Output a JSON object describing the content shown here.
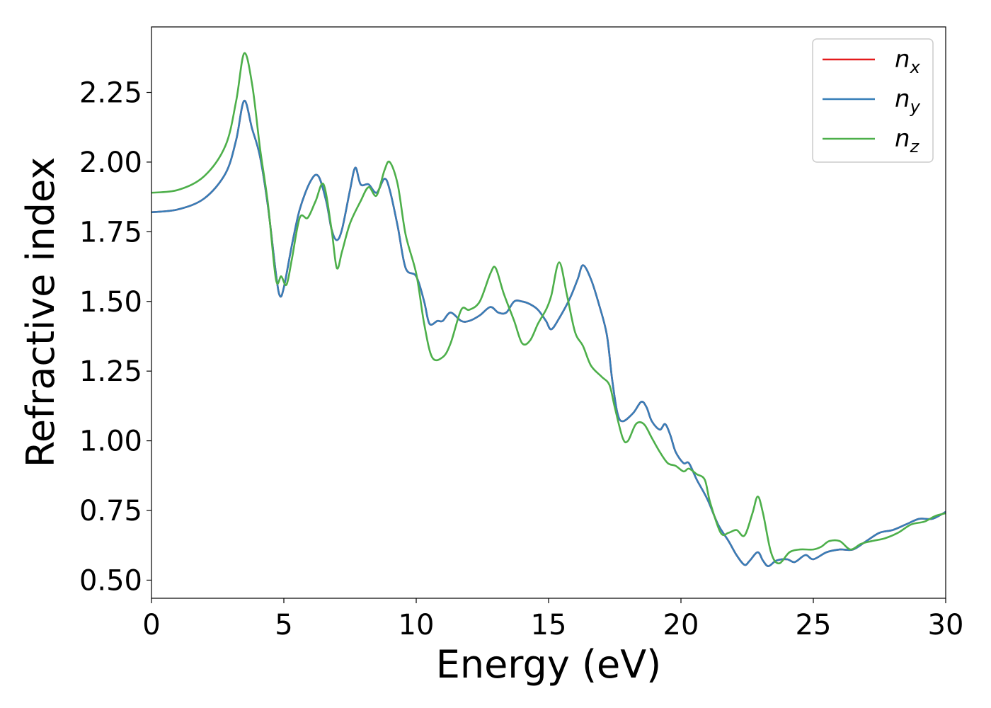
{
  "chart_data": {
    "type": "line",
    "title": "",
    "xlabel": "Energy (eV)",
    "ylabel": "Refractive index",
    "xlim": [
      0,
      30
    ],
    "ylim": [
      0.435,
      2.485
    ],
    "xticks": [
      0,
      5,
      10,
      15,
      20,
      25,
      30
    ],
    "xtick_labels": [
      "0",
      "5",
      "10",
      "15",
      "20",
      "25",
      "30"
    ],
    "yticks": [
      0.5,
      0.75,
      1.0,
      1.25,
      1.5,
      1.75,
      2.0,
      2.25
    ],
    "ytick_labels": [
      "0.50",
      "0.75",
      "1.00",
      "1.25",
      "1.50",
      "1.75",
      "2.00",
      "2.25"
    ],
    "grid": false,
    "legend_position": "top-right",
    "series": [
      {
        "name": "n_x",
        "label_base": "n",
        "label_sub": "x",
        "color": "#e41a1c",
        "points": [
          [
            0,
            1.82
          ],
          [
            1,
            1.83
          ],
          [
            2,
            1.87
          ],
          [
            2.8,
            1.96
          ],
          [
            3.2,
            2.08
          ],
          [
            3.5,
            2.22
          ],
          [
            3.8,
            2.12
          ],
          [
            4.1,
            2.02
          ],
          [
            4.4,
            1.84
          ],
          [
            4.7,
            1.6
          ],
          [
            4.85,
            1.52
          ],
          [
            5.0,
            1.55
          ],
          [
            5.3,
            1.7
          ],
          [
            5.6,
            1.83
          ],
          [
            6.0,
            1.93
          ],
          [
            6.3,
            1.95
          ],
          [
            6.6,
            1.86
          ],
          [
            6.8,
            1.76
          ],
          [
            7.0,
            1.72
          ],
          [
            7.2,
            1.76
          ],
          [
            7.5,
            1.9
          ],
          [
            7.7,
            1.98
          ],
          [
            7.9,
            1.92
          ],
          [
            8.2,
            1.92
          ],
          [
            8.5,
            1.89
          ],
          [
            8.8,
            1.94
          ],
          [
            9.0,
            1.9
          ],
          [
            9.3,
            1.77
          ],
          [
            9.6,
            1.62
          ],
          [
            10.0,
            1.59
          ],
          [
            10.3,
            1.5
          ],
          [
            10.5,
            1.42
          ],
          [
            10.8,
            1.43
          ],
          [
            11.0,
            1.43
          ],
          [
            11.3,
            1.46
          ],
          [
            11.7,
            1.43
          ],
          [
            12.0,
            1.43
          ],
          [
            12.4,
            1.45
          ],
          [
            12.8,
            1.48
          ],
          [
            13.1,
            1.46
          ],
          [
            13.4,
            1.46
          ],
          [
            13.7,
            1.5
          ],
          [
            14.0,
            1.5
          ],
          [
            14.3,
            1.49
          ],
          [
            14.6,
            1.47
          ],
          [
            14.9,
            1.43
          ],
          [
            15.1,
            1.4
          ],
          [
            15.4,
            1.44
          ],
          [
            15.8,
            1.51
          ],
          [
            16.1,
            1.58
          ],
          [
            16.3,
            1.63
          ],
          [
            16.6,
            1.58
          ],
          [
            16.9,
            1.49
          ],
          [
            17.2,
            1.38
          ],
          [
            17.4,
            1.22
          ],
          [
            17.6,
            1.1
          ],
          [
            17.8,
            1.07
          ],
          [
            18.2,
            1.1
          ],
          [
            18.5,
            1.14
          ],
          [
            18.7,
            1.12
          ],
          [
            18.9,
            1.07
          ],
          [
            19.2,
            1.04
          ],
          [
            19.4,
            1.06
          ],
          [
            19.6,
            1.02
          ],
          [
            19.8,
            0.96
          ],
          [
            20.1,
            0.92
          ],
          [
            20.3,
            0.92
          ],
          [
            20.6,
            0.86
          ],
          [
            21.0,
            0.79
          ],
          [
            21.4,
            0.7
          ],
          [
            21.8,
            0.64
          ],
          [
            22.1,
            0.59
          ],
          [
            22.4,
            0.555
          ],
          [
            22.6,
            0.57
          ],
          [
            22.9,
            0.6
          ],
          [
            23.1,
            0.57
          ],
          [
            23.3,
            0.55
          ],
          [
            23.6,
            0.57
          ],
          [
            24.0,
            0.575
          ],
          [
            24.3,
            0.565
          ],
          [
            24.7,
            0.59
          ],
          [
            25.0,
            0.575
          ],
          [
            25.5,
            0.6
          ],
          [
            26.0,
            0.61
          ],
          [
            26.5,
            0.61
          ],
          [
            27.0,
            0.64
          ],
          [
            27.5,
            0.67
          ],
          [
            28.0,
            0.68
          ],
          [
            28.5,
            0.7
          ],
          [
            29.0,
            0.72
          ],
          [
            29.5,
            0.72
          ],
          [
            30.0,
            0.745
          ]
        ]
      },
      {
        "name": "n_y",
        "label_base": "n",
        "label_sub": "y",
        "color": "#377eb8",
        "points": [
          [
            0,
            1.82
          ],
          [
            1,
            1.83
          ],
          [
            2,
            1.87
          ],
          [
            2.8,
            1.96
          ],
          [
            3.2,
            2.08
          ],
          [
            3.5,
            2.22
          ],
          [
            3.8,
            2.12
          ],
          [
            4.1,
            2.02
          ],
          [
            4.4,
            1.84
          ],
          [
            4.7,
            1.6
          ],
          [
            4.85,
            1.52
          ],
          [
            5.0,
            1.55
          ],
          [
            5.3,
            1.7
          ],
          [
            5.6,
            1.83
          ],
          [
            6.0,
            1.93
          ],
          [
            6.3,
            1.95
          ],
          [
            6.6,
            1.86
          ],
          [
            6.8,
            1.76
          ],
          [
            7.0,
            1.72
          ],
          [
            7.2,
            1.76
          ],
          [
            7.5,
            1.9
          ],
          [
            7.7,
            1.98
          ],
          [
            7.9,
            1.92
          ],
          [
            8.2,
            1.92
          ],
          [
            8.5,
            1.89
          ],
          [
            8.8,
            1.94
          ],
          [
            9.0,
            1.9
          ],
          [
            9.3,
            1.77
          ],
          [
            9.6,
            1.62
          ],
          [
            10.0,
            1.59
          ],
          [
            10.3,
            1.5
          ],
          [
            10.5,
            1.42
          ],
          [
            10.8,
            1.43
          ],
          [
            11.0,
            1.43
          ],
          [
            11.3,
            1.46
          ],
          [
            11.7,
            1.43
          ],
          [
            12.0,
            1.43
          ],
          [
            12.4,
            1.45
          ],
          [
            12.8,
            1.48
          ],
          [
            13.1,
            1.46
          ],
          [
            13.4,
            1.46
          ],
          [
            13.7,
            1.5
          ],
          [
            14.0,
            1.5
          ],
          [
            14.3,
            1.49
          ],
          [
            14.6,
            1.47
          ],
          [
            14.9,
            1.43
          ],
          [
            15.1,
            1.4
          ],
          [
            15.4,
            1.44
          ],
          [
            15.8,
            1.51
          ],
          [
            16.1,
            1.58
          ],
          [
            16.3,
            1.63
          ],
          [
            16.6,
            1.58
          ],
          [
            16.9,
            1.49
          ],
          [
            17.2,
            1.38
          ],
          [
            17.4,
            1.22
          ],
          [
            17.6,
            1.1
          ],
          [
            17.8,
            1.07
          ],
          [
            18.2,
            1.1
          ],
          [
            18.5,
            1.14
          ],
          [
            18.7,
            1.12
          ],
          [
            18.9,
            1.07
          ],
          [
            19.2,
            1.04
          ],
          [
            19.4,
            1.06
          ],
          [
            19.6,
            1.02
          ],
          [
            19.8,
            0.96
          ],
          [
            20.1,
            0.92
          ],
          [
            20.3,
            0.92
          ],
          [
            20.6,
            0.86
          ],
          [
            21.0,
            0.79
          ],
          [
            21.4,
            0.7
          ],
          [
            21.8,
            0.64
          ],
          [
            22.1,
            0.59
          ],
          [
            22.4,
            0.555
          ],
          [
            22.6,
            0.57
          ],
          [
            22.9,
            0.6
          ],
          [
            23.1,
            0.57
          ],
          [
            23.3,
            0.55
          ],
          [
            23.6,
            0.57
          ],
          [
            24.0,
            0.575
          ],
          [
            24.3,
            0.565
          ],
          [
            24.7,
            0.59
          ],
          [
            25.0,
            0.575
          ],
          [
            25.5,
            0.6
          ],
          [
            26.0,
            0.61
          ],
          [
            26.5,
            0.61
          ],
          [
            27.0,
            0.64
          ],
          [
            27.5,
            0.67
          ],
          [
            28.0,
            0.68
          ],
          [
            28.5,
            0.7
          ],
          [
            29.0,
            0.72
          ],
          [
            29.5,
            0.72
          ],
          [
            30.0,
            0.745
          ]
        ]
      },
      {
        "name": "n_z",
        "label_base": "n",
        "label_sub": "z",
        "color": "#4daf4a",
        "points": [
          [
            0,
            1.89
          ],
          [
            1,
            1.9
          ],
          [
            2,
            1.95
          ],
          [
            2.8,
            2.06
          ],
          [
            3.2,
            2.22
          ],
          [
            3.5,
            2.39
          ],
          [
            3.8,
            2.28
          ],
          [
            4.1,
            2.05
          ],
          [
            4.4,
            1.85
          ],
          [
            4.7,
            1.58
          ],
          [
            4.9,
            1.59
          ],
          [
            5.1,
            1.56
          ],
          [
            5.3,
            1.65
          ],
          [
            5.6,
            1.8
          ],
          [
            5.9,
            1.8
          ],
          [
            6.2,
            1.86
          ],
          [
            6.5,
            1.92
          ],
          [
            6.8,
            1.76
          ],
          [
            7.0,
            1.62
          ],
          [
            7.2,
            1.68
          ],
          [
            7.5,
            1.78
          ],
          [
            7.9,
            1.86
          ],
          [
            8.2,
            1.91
          ],
          [
            8.5,
            1.88
          ],
          [
            8.8,
            1.97
          ],
          [
            9.0,
            2.0
          ],
          [
            9.3,
            1.92
          ],
          [
            9.6,
            1.74
          ],
          [
            10.0,
            1.6
          ],
          [
            10.3,
            1.42
          ],
          [
            10.6,
            1.3
          ],
          [
            11.0,
            1.3
          ],
          [
            11.3,
            1.35
          ],
          [
            11.7,
            1.47
          ],
          [
            12.0,
            1.47
          ],
          [
            12.4,
            1.5
          ],
          [
            12.8,
            1.6
          ],
          [
            13.0,
            1.62
          ],
          [
            13.3,
            1.53
          ],
          [
            13.7,
            1.43
          ],
          [
            14.0,
            1.35
          ],
          [
            14.3,
            1.36
          ],
          [
            14.6,
            1.42
          ],
          [
            14.9,
            1.47
          ],
          [
            15.1,
            1.52
          ],
          [
            15.4,
            1.64
          ],
          [
            15.7,
            1.52
          ],
          [
            16.0,
            1.39
          ],
          [
            16.3,
            1.34
          ],
          [
            16.6,
            1.27
          ],
          [
            17.0,
            1.23
          ],
          [
            17.3,
            1.2
          ],
          [
            17.5,
            1.12
          ],
          [
            17.8,
            1.01
          ],
          [
            18.0,
            1.0
          ],
          [
            18.3,
            1.06
          ],
          [
            18.6,
            1.06
          ],
          [
            18.9,
            1.01
          ],
          [
            19.2,
            0.96
          ],
          [
            19.5,
            0.92
          ],
          [
            19.8,
            0.91
          ],
          [
            20.1,
            0.89
          ],
          [
            20.3,
            0.9
          ],
          [
            20.6,
            0.88
          ],
          [
            20.9,
            0.86
          ],
          [
            21.1,
            0.78
          ],
          [
            21.5,
            0.67
          ],
          [
            21.8,
            0.67
          ],
          [
            22.1,
            0.68
          ],
          [
            22.4,
            0.66
          ],
          [
            22.7,
            0.74
          ],
          [
            22.9,
            0.8
          ],
          [
            23.1,
            0.74
          ],
          [
            23.4,
            0.6
          ],
          [
            23.7,
            0.56
          ],
          [
            24.1,
            0.6
          ],
          [
            24.5,
            0.61
          ],
          [
            25.0,
            0.61
          ],
          [
            25.3,
            0.62
          ],
          [
            25.6,
            0.64
          ],
          [
            26.0,
            0.64
          ],
          [
            26.4,
            0.61
          ],
          [
            26.8,
            0.63
          ],
          [
            27.2,
            0.64
          ],
          [
            27.7,
            0.65
          ],
          [
            28.2,
            0.67
          ],
          [
            28.7,
            0.7
          ],
          [
            29.2,
            0.71
          ],
          [
            29.6,
            0.73
          ],
          [
            30.0,
            0.74
          ]
        ]
      }
    ]
  }
}
